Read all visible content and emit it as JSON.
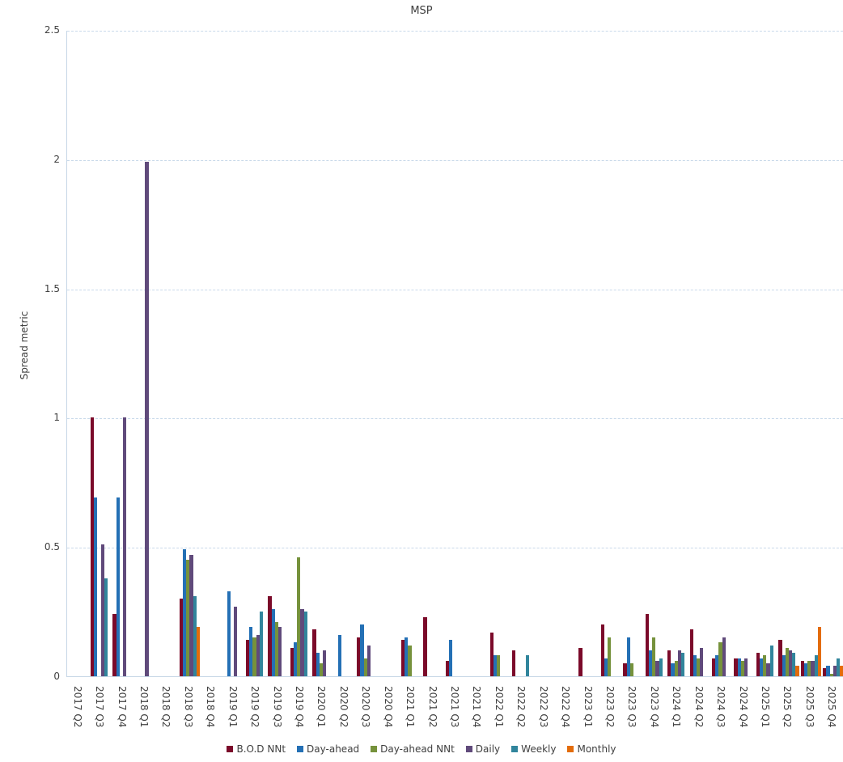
{
  "chart_data": {
    "type": "bar",
    "title": "MSP",
    "xlabel": "",
    "ylabel": "Spread metric",
    "ylim": [
      0,
      2.5
    ],
    "yticks": [
      0,
      0.5,
      1,
      1.5,
      2,
      2.5
    ],
    "grid": true,
    "legend_position": "bottom",
    "categories": [
      "2017 Q2",
      "2017 Q3",
      "2017 Q4",
      "2018 Q1",
      "2018 Q2",
      "2018 Q3",
      "2018 Q4",
      "2019 Q1",
      "2019 Q2",
      "2019 Q3",
      "2019 Q4",
      "2020 Q1",
      "2020 Q2",
      "2020 Q3",
      "2020 Q4",
      "2021 Q1",
      "2021 Q2",
      "2021 Q3",
      "2021 Q4",
      "2022 Q1",
      "2022 Q2",
      "2022 Q3",
      "2022 Q4",
      "2023 Q1",
      "2023 Q2",
      "2023 Q3",
      "2023 Q4",
      "2024 Q1",
      "2024 Q2",
      "2024 Q3",
      "2024 Q4",
      "2025 Q1",
      "2025 Q2",
      "2025 Q3",
      "2025 Q4"
    ],
    "series": [
      {
        "name": "B.O.D NNt",
        "color": "#7b0a2a",
        "values": [
          0,
          1.0,
          0.24,
          0,
          0,
          0.3,
          0,
          0,
          0.14,
          0.31,
          0.11,
          0.18,
          0,
          0.15,
          0,
          0.14,
          0.23,
          0.06,
          0,
          0.17,
          0.1,
          0,
          0,
          0.11,
          0.2,
          0.05,
          0.24,
          0.1,
          0.18,
          0.07,
          0.07,
          0.09,
          0.14,
          0.06,
          0.03
        ]
      },
      {
        "name": "Day-ahead",
        "color": "#2470b5",
        "values": [
          0,
          0.69,
          0.69,
          0,
          0,
          0.49,
          0,
          0.33,
          0.19,
          0.26,
          0.13,
          0.09,
          0.16,
          0.2,
          0,
          0.15,
          0,
          0.14,
          0,
          0.08,
          0,
          0,
          0,
          0,
          0.07,
          0.15,
          0.1,
          0.05,
          0.08,
          0.08,
          0.07,
          0.07,
          0.08,
          0.05,
          0.04
        ]
      },
      {
        "name": "Day-ahead NNt",
        "color": "#76923c",
        "values": [
          0,
          0,
          0,
          0,
          0,
          0.45,
          0,
          0,
          0.15,
          0.21,
          0.46,
          0.05,
          0,
          0.07,
          0,
          0.12,
          0,
          0,
          0,
          0.08,
          0,
          0,
          0,
          0,
          0.15,
          0.05,
          0.15,
          0.06,
          0.07,
          0.13,
          0.06,
          0.08,
          0.11,
          0.06,
          0.01
        ]
      },
      {
        "name": "Daily",
        "color": "#604a7b",
        "values": [
          0,
          0.51,
          1.0,
          1.99,
          0,
          0.47,
          0,
          0.27,
          0.16,
          0.19,
          0.26,
          0.1,
          0,
          0.12,
          0,
          0,
          0,
          0,
          0,
          0,
          0,
          0,
          0,
          0,
          0,
          0,
          0.06,
          0.1,
          0.11,
          0.15,
          0.07,
          0.05,
          0.1,
          0.06,
          0.04
        ]
      },
      {
        "name": "Weekly",
        "color": "#31859c",
        "values": [
          0,
          0.38,
          0,
          0,
          0,
          0.31,
          0,
          0,
          0.25,
          0,
          0.25,
          0,
          0,
          0,
          0,
          0,
          0,
          0,
          0,
          0,
          0.08,
          0,
          0,
          0,
          0,
          0,
          0.07,
          0.09,
          0,
          0,
          0,
          0.12,
          0.09,
          0.08,
          0.07
        ]
      },
      {
        "name": "Monthly",
        "color": "#e36c0a",
        "values": [
          0,
          0,
          0,
          0,
          0,
          0.19,
          0,
          0,
          0,
          0,
          0,
          0,
          0,
          0,
          0,
          0,
          0,
          0,
          0,
          0,
          0,
          0,
          0,
          0,
          0,
          0,
          0,
          0,
          0,
          0,
          0,
          0,
          0.04,
          0.19,
          0.04
        ]
      }
    ]
  }
}
